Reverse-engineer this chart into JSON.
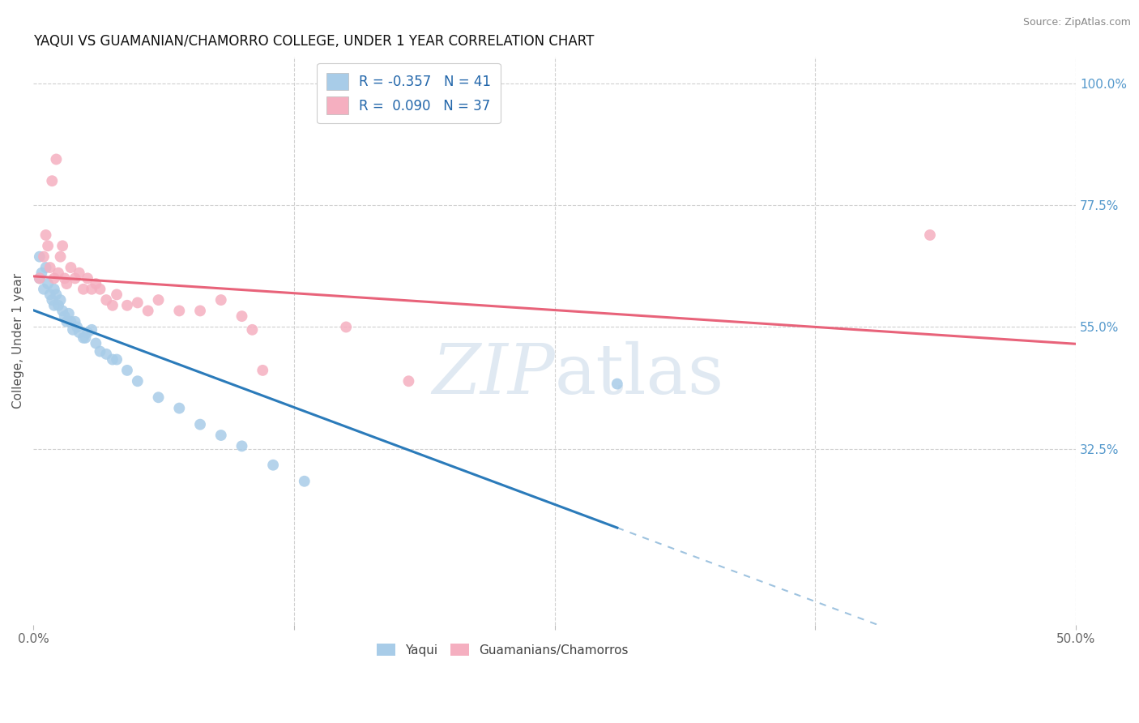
{
  "title": "YAQUI VS GUAMANIAN/CHAMORRO COLLEGE, UNDER 1 YEAR CORRELATION CHART",
  "source_text": "Source: ZipAtlas.com",
  "ylabel": "College, Under 1 year",
  "xlim": [
    0.0,
    0.5
  ],
  "ylim": [
    0.0,
    1.05
  ],
  "ytick_positions": [
    0.325,
    0.55,
    0.775,
    1.0
  ],
  "ytick_labels": [
    "32.5%",
    "55.0%",
    "77.5%",
    "100.0%"
  ],
  "legend_line1": "R = -0.357   N = 41",
  "legend_line2": "R =  0.090   N = 37",
  "blue_scatter": "#a8cce8",
  "pink_scatter": "#f5afc0",
  "blue_line": "#2b7bba",
  "pink_line": "#e8637a",
  "grid_color": "#d0d0d0",
  "watermark_color": "#c8d8e8",
  "yaqui_x": [
    0.003,
    0.004,
    0.005,
    0.006,
    0.007,
    0.008,
    0.009,
    0.01,
    0.01,
    0.011,
    0.012,
    0.013,
    0.014,
    0.015,
    0.016,
    0.017,
    0.018,
    0.019,
    0.02,
    0.021,
    0.022,
    0.024,
    0.025,
    0.026,
    0.028,
    0.03,
    0.032,
    0.035,
    0.038,
    0.04,
    0.045,
    0.05,
    0.06,
    0.07,
    0.08,
    0.09,
    0.1,
    0.115,
    0.13,
    0.28,
    0.003
  ],
  "yaqui_y": [
    0.64,
    0.65,
    0.62,
    0.66,
    0.63,
    0.61,
    0.6,
    0.62,
    0.59,
    0.61,
    0.59,
    0.6,
    0.58,
    0.57,
    0.56,
    0.575,
    0.56,
    0.545,
    0.56,
    0.55,
    0.54,
    0.53,
    0.53,
    0.54,
    0.545,
    0.52,
    0.505,
    0.5,
    0.49,
    0.49,
    0.47,
    0.45,
    0.42,
    0.4,
    0.37,
    0.35,
    0.33,
    0.295,
    0.265,
    0.445,
    0.68
  ],
  "guam_x": [
    0.003,
    0.005,
    0.006,
    0.007,
    0.008,
    0.009,
    0.01,
    0.011,
    0.012,
    0.013,
    0.014,
    0.015,
    0.016,
    0.018,
    0.02,
    0.022,
    0.024,
    0.026,
    0.028,
    0.03,
    0.032,
    0.035,
    0.038,
    0.04,
    0.045,
    0.05,
    0.055,
    0.06,
    0.07,
    0.08,
    0.09,
    0.1,
    0.105,
    0.11,
    0.15,
    0.18,
    0.43
  ],
  "guam_y": [
    0.64,
    0.68,
    0.72,
    0.7,
    0.66,
    0.82,
    0.64,
    0.86,
    0.65,
    0.68,
    0.7,
    0.64,
    0.63,
    0.66,
    0.64,
    0.65,
    0.62,
    0.64,
    0.62,
    0.63,
    0.62,
    0.6,
    0.59,
    0.61,
    0.59,
    0.595,
    0.58,
    0.6,
    0.58,
    0.58,
    0.6,
    0.57,
    0.545,
    0.47,
    0.55,
    0.45,
    0.72
  ]
}
